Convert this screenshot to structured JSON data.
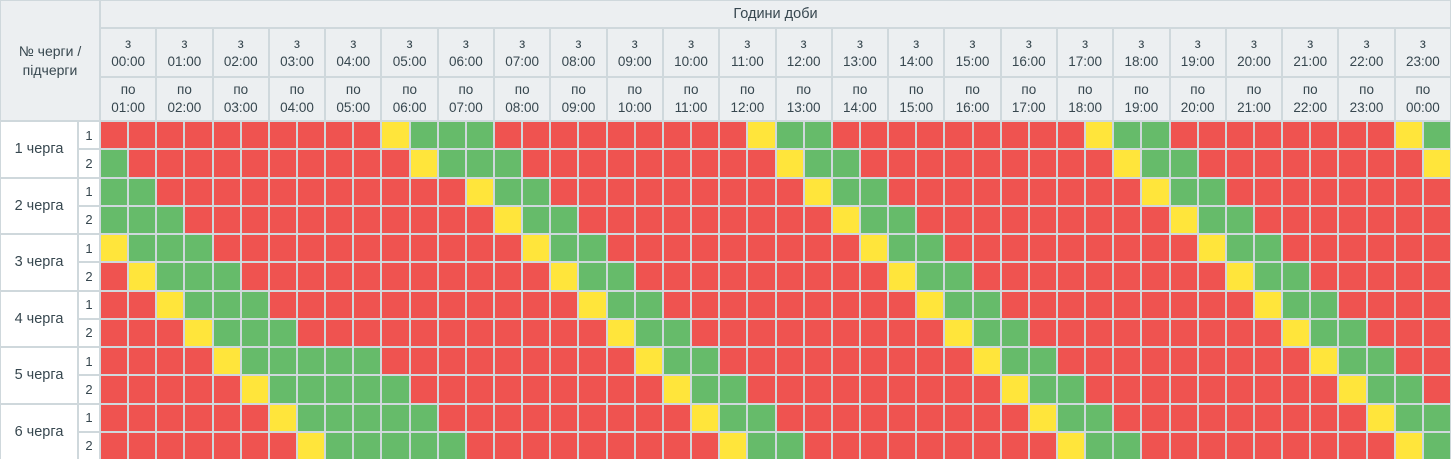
{
  "table": {
    "corner_label": "№ черги / підчерги",
    "hours_title": "Години доби",
    "hour_from_prefix": "з",
    "hour_to_prefix": "по",
    "hour_columns": [
      {
        "from": "00:00",
        "to": "01:00"
      },
      {
        "from": "01:00",
        "to": "02:00"
      },
      {
        "from": "02:00",
        "to": "03:00"
      },
      {
        "from": "03:00",
        "to": "04:00"
      },
      {
        "from": "04:00",
        "to": "05:00"
      },
      {
        "from": "05:00",
        "to": "06:00"
      },
      {
        "from": "06:00",
        "to": "07:00"
      },
      {
        "from": "07:00",
        "to": "08:00"
      },
      {
        "from": "08:00",
        "to": "09:00"
      },
      {
        "from": "09:00",
        "to": "10:00"
      },
      {
        "from": "10:00",
        "to": "11:00"
      },
      {
        "from": "11:00",
        "to": "12:00"
      },
      {
        "from": "12:00",
        "to": "13:00"
      },
      {
        "from": "13:00",
        "to": "14:00"
      },
      {
        "from": "14:00",
        "to": "15:00"
      },
      {
        "from": "15:00",
        "to": "16:00"
      },
      {
        "from": "16:00",
        "to": "17:00"
      },
      {
        "from": "17:00",
        "to": "18:00"
      },
      {
        "from": "18:00",
        "to": "19:00"
      },
      {
        "from": "19:00",
        "to": "20:00"
      },
      {
        "from": "20:00",
        "to": "21:00"
      },
      {
        "from": "21:00",
        "to": "22:00"
      },
      {
        "from": "22:00",
        "to": "23:00"
      },
      {
        "from": "23:00",
        "to": "00:00"
      }
    ],
    "cell_colors": {
      "R": "#ef5350",
      "G": "#66bb6a",
      "Y": "#ffe53b"
    },
    "ui_colors": {
      "header_bg": "#eceff1",
      "grid_line": "#cfd8dc",
      "text": "#37474f",
      "row_label_bg": "#ffffff"
    },
    "queues": [
      {
        "label": "1 черга",
        "subqueues": [
          {
            "label": "1",
            "cells": "RRRRRRRRRRYGGGRRRRRRRRRYGGRRRRRRRRRYGGRRRRRRRRYG"
          },
          {
            "label": "2",
            "cells": "GRRRRRRRRRRYGGGRRRRRRRRRYGGRRRRRRRRRYGGRRRRRRRRY"
          }
        ]
      },
      {
        "label": "2 черга",
        "subqueues": [
          {
            "label": "1",
            "cells": "GGRRRRRRRRRRRYGGRRRRRRRRRYGGRRRRRRRRRYGGRRRRRRRR"
          },
          {
            "label": "2",
            "cells": "GGGRRRRRRRRRRRYGGRRRRRRRRRYGGRRRRRRRRRYGGRRRRRRR"
          }
        ]
      },
      {
        "label": "3 черга",
        "subqueues": [
          {
            "label": "1",
            "cells": "YGGGRRRRRRRRRRRYGGRRRRRRRRRYGGRRRRRRRRRYGGRRRRRR"
          },
          {
            "label": "2",
            "cells": "RYGGGRRRRRRRRRRRYGGRRRRRRRRRYGGRRRRRRRRRYGGRRRRR"
          }
        ]
      },
      {
        "label": "4 черга",
        "subqueues": [
          {
            "label": "1",
            "cells": "RRYGGGRRRRRRRRRRRYGGRRRRRRRRRYGGRRRRRRRRRYGGRRRR"
          },
          {
            "label": "2",
            "cells": "RRRYGGGRRRRRRRRRRRYGGRRRRRRRRRYGGRRRRRRRRRYGGRRR"
          }
        ]
      },
      {
        "label": "5 черга",
        "subqueues": [
          {
            "label": "1",
            "cells": "RRRRYGGGGGRRRRRRRRRYGGRRRRRRRRRYGGRRRRRRRRRYGGRR"
          },
          {
            "label": "2",
            "cells": "RRRRRYGGGGGRRRRRRRRRYGGRRRRRRRRRYGGRRRRRRRRRYGGR"
          }
        ]
      },
      {
        "label": "6 черга",
        "subqueues": [
          {
            "label": "1",
            "cells": "RRRRRRYGGGGGRRRRRRRRRYGGRRRRRRRRRYGGRRRRRRRRRYGG"
          },
          {
            "label": "2",
            "cells": "RRRRRRRYGGGGGRRRRRRRRRYGGRRRRRRRRRYGGRRRRRRRRRYG"
          }
        ]
      }
    ]
  }
}
